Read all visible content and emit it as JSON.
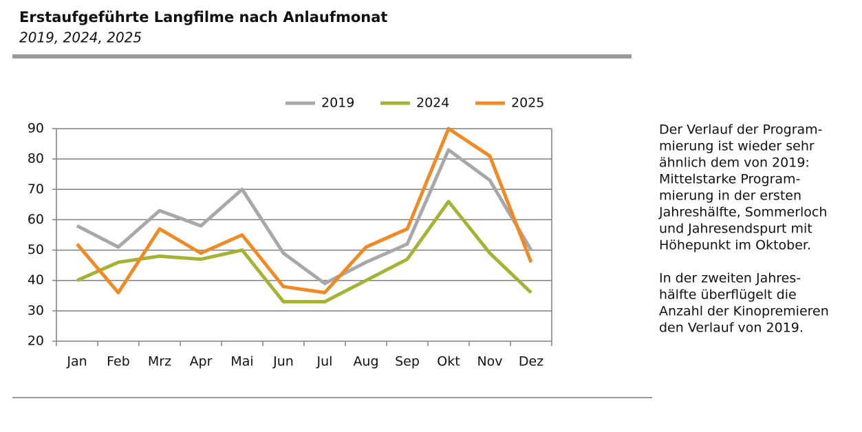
{
  "chart_data": {
    "type": "line",
    "title": "Erstaufgeführte Langfilme nach Anlaufmonat",
    "subtitle": "2019, 2024, 2025",
    "categories": [
      "Jan",
      "Feb",
      "Mrz",
      "Apr",
      "Mai",
      "Jun",
      "Jul",
      "Aug",
      "Sep",
      "Okt",
      "Nov",
      "Dez"
    ],
    "series": [
      {
        "name": "2019",
        "color": "#a6a8aa",
        "values": [
          58,
          51,
          63,
          58,
          70,
          49,
          39,
          46,
          52,
          83,
          73,
          50
        ]
      },
      {
        "name": "2024",
        "color": "#a5b334",
        "values": [
          40,
          46,
          48,
          47,
          50,
          33,
          33,
          40,
          47,
          66,
          49,
          36
        ]
      },
      {
        "name": "2025",
        "color": "#f08a25",
        "values": [
          52,
          36,
          57,
          49,
          55,
          38,
          36,
          51,
          57,
          90,
          81,
          46
        ]
      }
    ],
    "ylim": [
      20,
      90
    ],
    "yticks": [
      20,
      30,
      40,
      50,
      60,
      70,
      80,
      90
    ],
    "grid": true,
    "legend": "top"
  },
  "sidebar": {
    "paragraphs": [
      [
        "Der Verlauf der Program-",
        "mierung ist wieder sehr",
        "ähnlich dem von 2019:",
        "Mittelstarke Program-",
        "mierung in der ersten",
        "Jahreshälfte, Sommerloch",
        "und Jahresendspurt mit",
        "Höhepunkt im Oktober."
      ],
      [
        "In der zweiten Jahres-",
        "hälfte überflügelt die",
        "Anzahl der Kinopremieren",
        "den Verlauf von 2019."
      ]
    ]
  }
}
